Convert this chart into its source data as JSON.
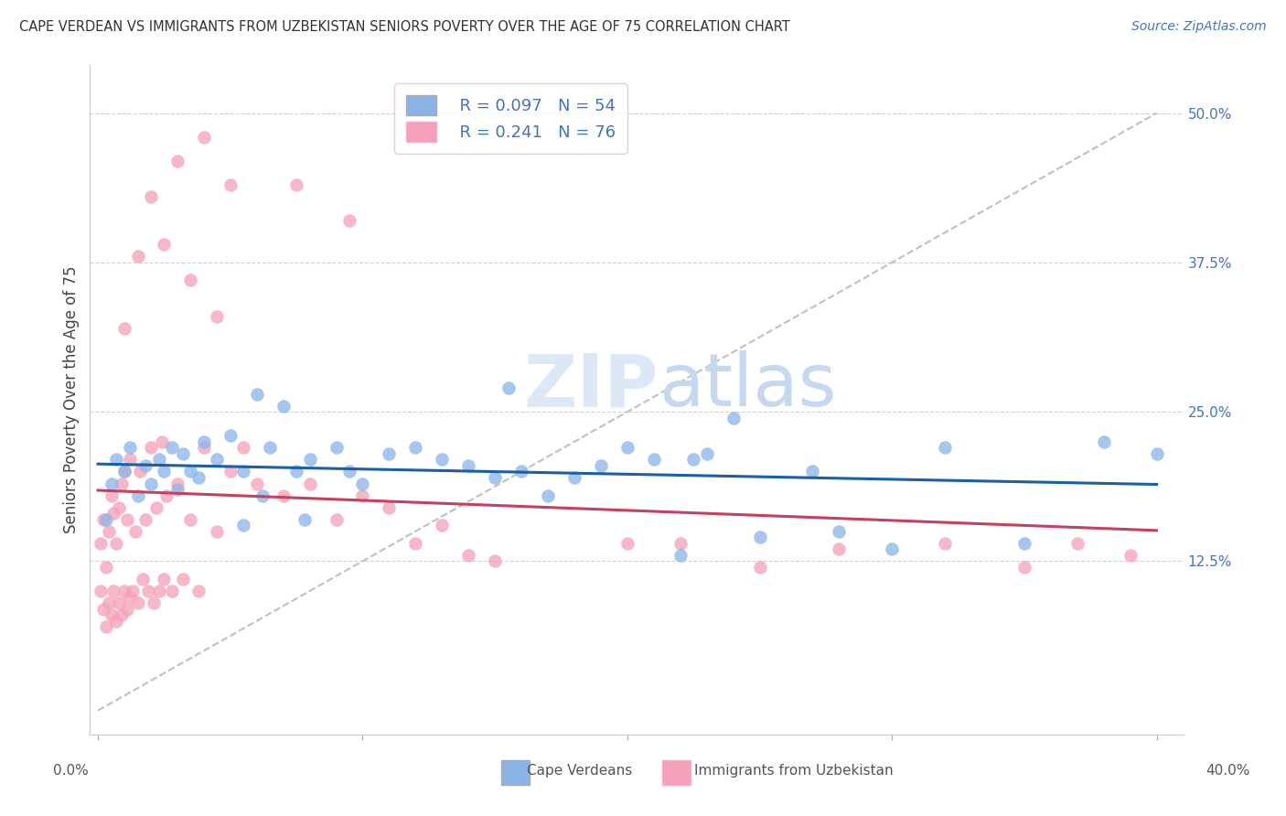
{
  "title": "CAPE VERDEAN VS IMMIGRANTS FROM UZBEKISTAN SENIORS POVERTY OVER THE AGE OF 75 CORRELATION CHART",
  "source": "Source: ZipAtlas.com",
  "ylabel": "Seniors Poverty Over the Age of 75",
  "legend_r1": "R = 0.097",
  "legend_n1": "N = 54",
  "legend_r2": "R = 0.241",
  "legend_n2": "N = 76",
  "blue_color": "#8ab4e8",
  "pink_color": "#f4a0b8",
  "blue_line_color": "#1a5fa8",
  "pink_line_color": "#c84060",
  "ref_line_color": "#c0c0c0",
  "grid_color": "#d0d0d0",
  "background_color": "#ffffff",
  "watermark_color": "#dce8f5",
  "blue_scatter_x": [
    0.3,
    0.5,
    0.7,
    1.0,
    1.2,
    1.5,
    1.8,
    2.0,
    2.3,
    2.5,
    2.8,
    3.0,
    3.2,
    3.5,
    3.8,
    4.0,
    4.5,
    5.0,
    5.5,
    6.0,
    6.5,
    7.0,
    7.5,
    8.0,
    9.0,
    10.0,
    11.0,
    12.0,
    13.0,
    14.0,
    15.0,
    16.0,
    17.0,
    18.0,
    19.0,
    20.0,
    21.0,
    22.0,
    23.0,
    24.0,
    25.0,
    27.0,
    28.0,
    30.0,
    32.0,
    35.0,
    38.0,
    40.0,
    5.5,
    6.2,
    7.8,
    9.5,
    15.5,
    22.5
  ],
  "blue_scatter_y": [
    16.0,
    19.0,
    21.0,
    20.0,
    22.0,
    18.0,
    20.5,
    19.0,
    21.0,
    20.0,
    22.0,
    18.5,
    21.5,
    20.0,
    19.5,
    22.5,
    21.0,
    23.0,
    20.0,
    26.5,
    22.0,
    25.5,
    20.0,
    21.0,
    22.0,
    19.0,
    21.5,
    22.0,
    21.0,
    20.5,
    19.5,
    20.0,
    18.0,
    19.5,
    20.5,
    22.0,
    21.0,
    13.0,
    21.5,
    24.5,
    14.5,
    20.0,
    15.0,
    13.5,
    22.0,
    14.0,
    22.5,
    21.5,
    15.5,
    18.0,
    16.0,
    20.0,
    27.0,
    21.0
  ],
  "pink_scatter_x": [
    0.1,
    0.1,
    0.2,
    0.2,
    0.3,
    0.3,
    0.4,
    0.4,
    0.5,
    0.5,
    0.6,
    0.6,
    0.7,
    0.7,
    0.8,
    0.8,
    0.9,
    0.9,
    1.0,
    1.0,
    1.1,
    1.1,
    1.2,
    1.2,
    1.3,
    1.4,
    1.5,
    1.6,
    1.7,
    1.8,
    1.9,
    2.0,
    2.1,
    2.2,
    2.3,
    2.4,
    2.5,
    2.6,
    2.8,
    3.0,
    3.2,
    3.5,
    3.8,
    4.0,
    4.5,
    5.0,
    5.5,
    6.0,
    7.0,
    8.0,
    9.0,
    10.0,
    11.0,
    12.0,
    13.0,
    14.0,
    15.0,
    20.0,
    22.0,
    25.0,
    28.0,
    32.0,
    35.0,
    37.0,
    39.0,
    2.0,
    3.0,
    4.0,
    5.0,
    2.5,
    3.5,
    4.5,
    7.5,
    9.5,
    1.0,
    1.5
  ],
  "pink_scatter_y": [
    10.0,
    14.0,
    8.5,
    16.0,
    7.0,
    12.0,
    9.0,
    15.0,
    8.0,
    18.0,
    10.0,
    16.5,
    7.5,
    14.0,
    9.0,
    17.0,
    8.0,
    19.0,
    10.0,
    20.0,
    8.5,
    16.0,
    9.5,
    21.0,
    10.0,
    15.0,
    9.0,
    20.0,
    11.0,
    16.0,
    10.0,
    22.0,
    9.0,
    17.0,
    10.0,
    22.5,
    11.0,
    18.0,
    10.0,
    19.0,
    11.0,
    16.0,
    10.0,
    22.0,
    15.0,
    20.0,
    22.0,
    19.0,
    18.0,
    19.0,
    16.0,
    18.0,
    17.0,
    14.0,
    15.5,
    13.0,
    12.5,
    14.0,
    14.0,
    12.0,
    13.5,
    14.0,
    12.0,
    14.0,
    13.0,
    43.0,
    46.0,
    48.0,
    44.0,
    39.0,
    36.0,
    33.0,
    44.0,
    41.0,
    32.0,
    38.0
  ]
}
